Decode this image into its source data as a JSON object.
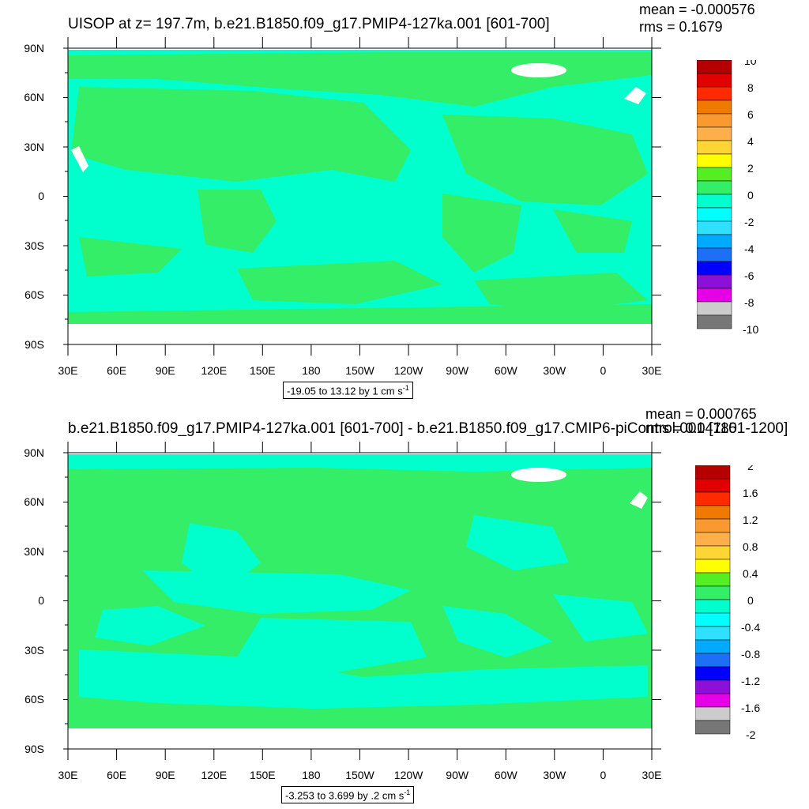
{
  "panels": [
    {
      "title": "UISOP at z= 197.7m, b.e21.B1850.f09_g17.PMIP4-127ka.001 [601-700]",
      "mean": "mean = -0.000576",
      "rms": "rms = 0.1679",
      "range_text": "-19.05 to 13.12 by 1 cm s",
      "range_unit_exp": "-1",
      "legend_labels": [
        "10",
        "8",
        "6",
        "4",
        "2",
        "0",
        "-2",
        "-4",
        "-6",
        "-8",
        "-10"
      ]
    },
    {
      "title": "b.e21.B1850.f09_g17.PMIP4-127ka.001 [601-700] - b.e21.B1850.f09_g17.CMIP6-piControl.001 [1101-1200]",
      "mean": "mean = 0.000765",
      "rms": "rms = 0.04785",
      "range_text": "-3.253 to 3.699 by .2 cm s",
      "range_unit_exp": "-1",
      "legend_labels": [
        "2",
        "1.6",
        "1.2",
        "0.8",
        "0.4",
        "0",
        "-0.4",
        "-0.8",
        "-1.2",
        "-1.6",
        "-2"
      ]
    }
  ],
  "lat_labels": [
    "90N",
    "60N",
    "30N",
    "0",
    "30S",
    "60S",
    "90S"
  ],
  "lon_labels": [
    "30E",
    "60E",
    "90E",
    "120E",
    "150E",
    "180",
    "150W",
    "120W",
    "90W",
    "60W",
    "30W",
    "0",
    "30E"
  ],
  "palette": [
    "#b40000",
    "#e00000",
    "#ff2a00",
    "#f07a00",
    "#f89a30",
    "#fdb04a",
    "#fdd535",
    "#ffff00",
    "#55ee22",
    "#33ee66",
    "#00ffcc",
    "#00ffff",
    "#30e0ff",
    "#00aaff",
    "#1d6ff5",
    "#0000ff",
    "#8c10d8",
    "#e600e6",
    "#cccccc",
    "#777777"
  ],
  "field_colors": {
    "green": "#33ee66",
    "cyan": "#00ffcc",
    "land_mask": "#ffffff"
  }
}
